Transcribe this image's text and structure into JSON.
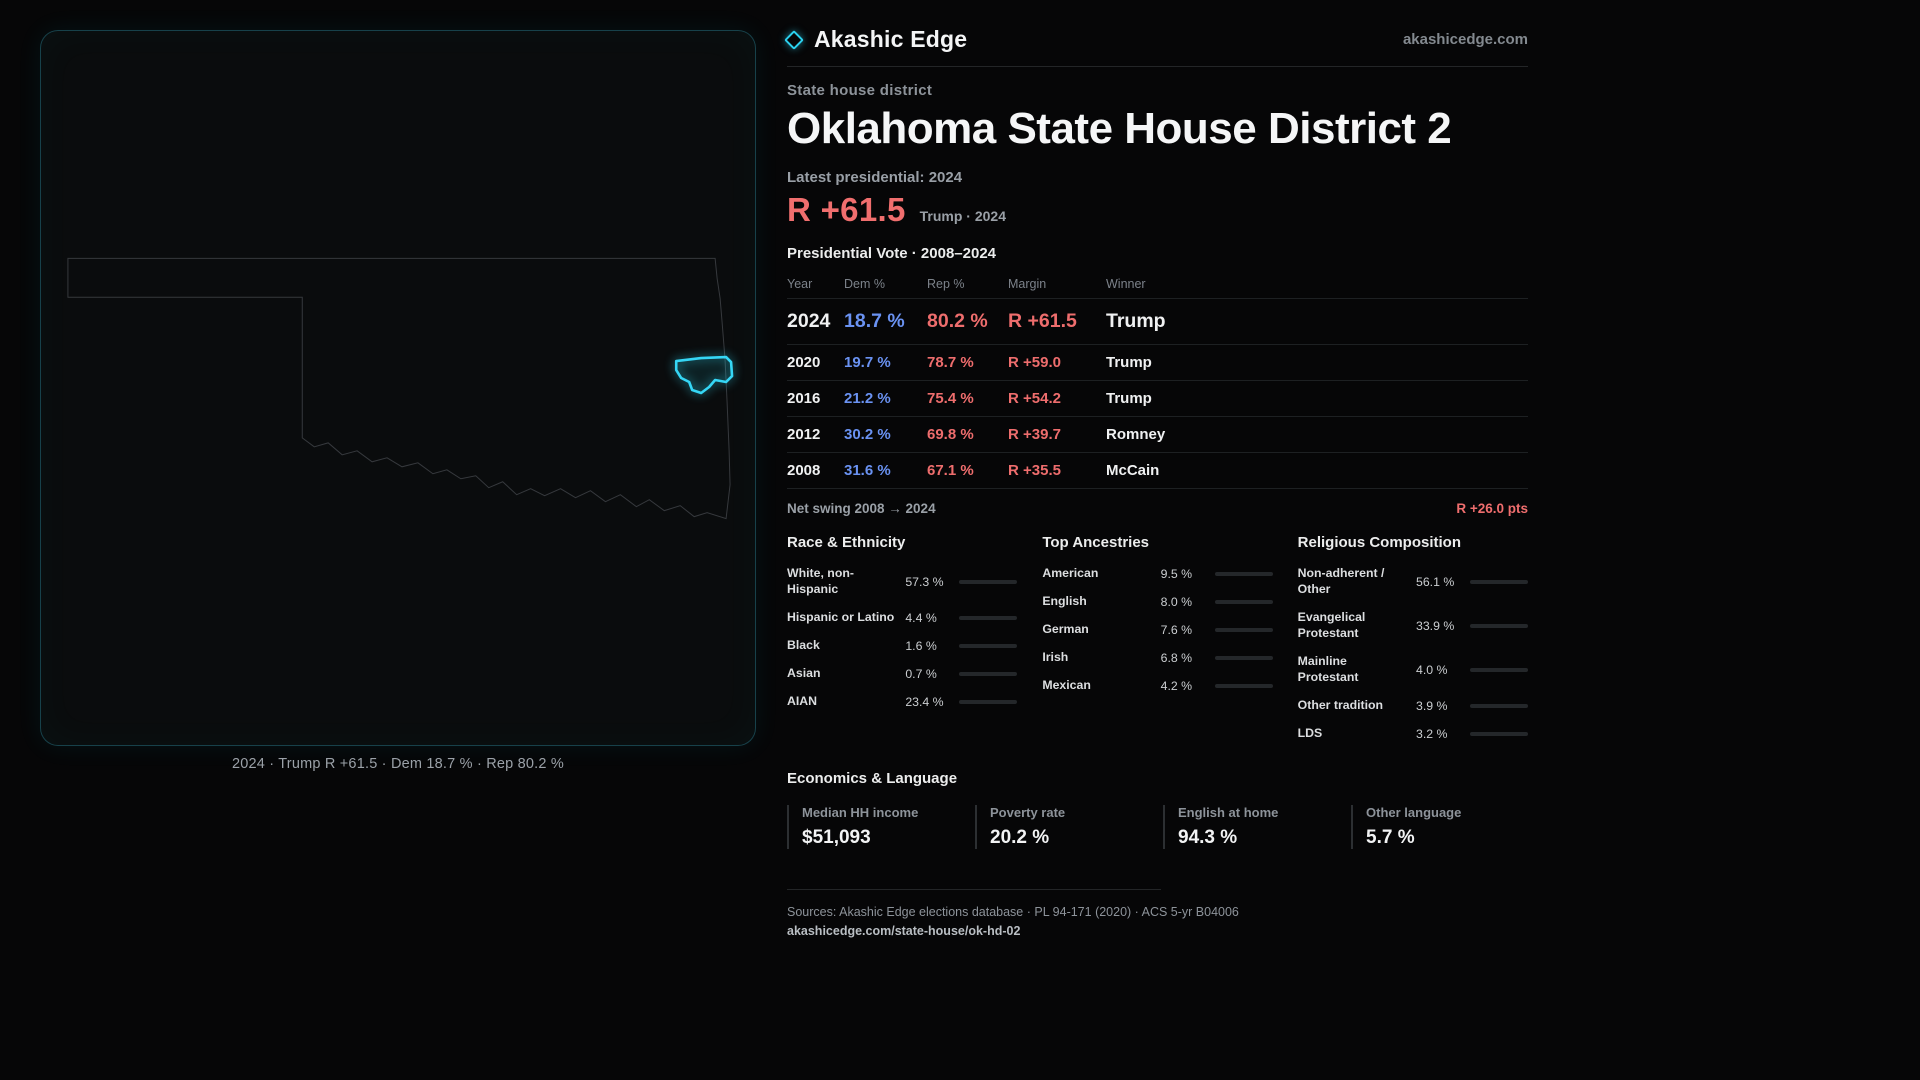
{
  "brand": {
    "name": "Akashic Edge",
    "site": "akashicedge.com"
  },
  "colors": {
    "accent": "#2bd0ee",
    "rep": "#ee6d6d",
    "dem": "#6a92f2"
  },
  "map": {
    "caption": "2024 · Trump  R +61.5 · Dem 18.7 % · Rep 80.2 %"
  },
  "header": {
    "kicker": "State house district",
    "title": "Oklahoma State House District 2",
    "latest": "Latest presidential: 2024",
    "headline_margin": "R +61.5",
    "headline_sub": "Trump · 2024"
  },
  "vote_table": {
    "title": "Presidential Vote · 2008–2024",
    "columns": {
      "year": "Year",
      "dem": "Dem %",
      "rep": "Rep %",
      "margin": "Margin",
      "winner": "Winner"
    },
    "rows": [
      {
        "year": "2024",
        "dem": "18.7 %",
        "rep": "80.2 %",
        "margin": "R +61.5",
        "winner": "Trump"
      },
      {
        "year": "2020",
        "dem": "19.7 %",
        "rep": "78.7 %",
        "margin": "R +59.0",
        "winner": "Trump"
      },
      {
        "year": "2016",
        "dem": "21.2 %",
        "rep": "75.4 %",
        "margin": "R +54.2",
        "winner": "Trump"
      },
      {
        "year": "2012",
        "dem": "30.2 %",
        "rep": "69.8 %",
        "margin": "R +39.7",
        "winner": "Romney"
      },
      {
        "year": "2008",
        "dem": "31.6 %",
        "rep": "67.1 %",
        "margin": "R +35.5",
        "winner": "McCain"
      }
    ],
    "swing_label": "Net swing 2008 → 2024",
    "swing_value": "R +26.0 pts"
  },
  "demographics": [
    {
      "title": "Race & Ethnicity",
      "rows": [
        {
          "label": "White, non-Hispanic",
          "value": "57.3 %",
          "pct": 57.3,
          "color": "#9ba1b3"
        },
        {
          "label": "Hispanic or Latino",
          "value": "4.4 %",
          "pct": 4.4,
          "color": "#d9b43c"
        },
        {
          "label": "Black",
          "value": "1.6 %",
          "pct": 1.6,
          "color": "#cfd3da"
        },
        {
          "label": "Asian",
          "value": "0.7 %",
          "pct": 0.7,
          "color": "#45c8c2"
        },
        {
          "label": "AIAN",
          "value": "23.4 %",
          "pct": 23.4,
          "color": "#dd9a35"
        }
      ]
    },
    {
      "title": "Top Ancestries",
      "rows": [
        {
          "label": "American",
          "value": "9.5 %",
          "pct": 9.5,
          "color": "#b9bdc7"
        },
        {
          "label": "English",
          "value": "8.0 %",
          "pct": 8.0,
          "color": "#b9bdc7"
        },
        {
          "label": "German",
          "value": "7.6 %",
          "pct": 7.6,
          "color": "#b9bdc7"
        },
        {
          "label": "Irish",
          "value": "6.8 %",
          "pct": 6.8,
          "color": "#b9bdc7"
        },
        {
          "label": "Mexican",
          "value": "4.2 %",
          "pct": 4.2,
          "color": "#d9b43c"
        }
      ]
    },
    {
      "title": "Religious Composition",
      "rows": [
        {
          "label": "Non-adherent / Other",
          "value": "56.1 %",
          "pct": 56.1,
          "color": "#9ba1b3"
        },
        {
          "label": "Evangelical Protestant",
          "value": "33.9 %",
          "pct": 33.9,
          "color": "#e06767"
        },
        {
          "label": "Mainline Protestant",
          "value": "4.0 %",
          "pct": 4.0,
          "color": "#4f7bed"
        },
        {
          "label": "Other tradition",
          "value": "3.9 %",
          "pct": 3.9,
          "color": "#b9bdc7"
        },
        {
          "label": "LDS",
          "value": "3.2 %",
          "pct": 3.2,
          "color": "#3cc7c0"
        }
      ]
    }
  ],
  "economics": {
    "title": "Economics & Language",
    "stats": [
      {
        "label": "Median HH income",
        "value": "$51,093"
      },
      {
        "label": "Poverty rate",
        "value": "20.2 %"
      },
      {
        "label": "English at home",
        "value": "94.3 %"
      },
      {
        "label": "Other language",
        "value": "5.7 %"
      }
    ]
  },
  "footer": {
    "sources": "Sources: Akashic Edge elections database · PL 94-171 (2020) · ACS 5-yr B04006",
    "permalink": "akashicedge.com/state-house/ok-hd-02"
  },
  "chart_data": [
    {
      "type": "table",
      "title": "Presidential Vote · 2008–2024",
      "columns": [
        "Year",
        "Dem %",
        "Rep %",
        "Margin",
        "Winner"
      ],
      "rows": [
        [
          "2024",
          18.7,
          80.2,
          "R +61.5",
          "Trump"
        ],
        [
          "2020",
          19.7,
          78.7,
          "R +59.0",
          "Trump"
        ],
        [
          "2016",
          21.2,
          75.4,
          "R +54.2",
          "Trump"
        ],
        [
          "2012",
          30.2,
          69.8,
          "R +39.7",
          "Romney"
        ],
        [
          "2008",
          31.6,
          67.1,
          "R +35.5",
          "McCain"
        ]
      ],
      "annotations": [
        "Net swing 2008 → 2024: R +26.0 pts",
        "Latest margin: R +61.5 (Trump, 2024)"
      ]
    },
    {
      "type": "bar",
      "title": "Race & Ethnicity",
      "categories": [
        "White, non-Hispanic",
        "Hispanic or Latino",
        "Black",
        "Asian",
        "AIAN"
      ],
      "values": [
        57.3,
        4.4,
        1.6,
        0.7,
        23.4
      ],
      "xlabel": "",
      "ylabel": "Percent",
      "ylim": [
        0,
        100
      ]
    },
    {
      "type": "bar",
      "title": "Top Ancestries",
      "categories": [
        "American",
        "English",
        "German",
        "Irish",
        "Mexican"
      ],
      "values": [
        9.5,
        8.0,
        7.6,
        6.8,
        4.2
      ],
      "xlabel": "",
      "ylabel": "Percent",
      "ylim": [
        0,
        100
      ]
    },
    {
      "type": "bar",
      "title": "Religious Composition",
      "categories": [
        "Non-adherent / Other",
        "Evangelical Protestant",
        "Mainline Protestant",
        "Other tradition",
        "LDS"
      ],
      "values": [
        56.1,
        33.9,
        4.0,
        3.9,
        3.2
      ],
      "xlabel": "",
      "ylabel": "Percent",
      "ylim": [
        0,
        100
      ]
    }
  ]
}
